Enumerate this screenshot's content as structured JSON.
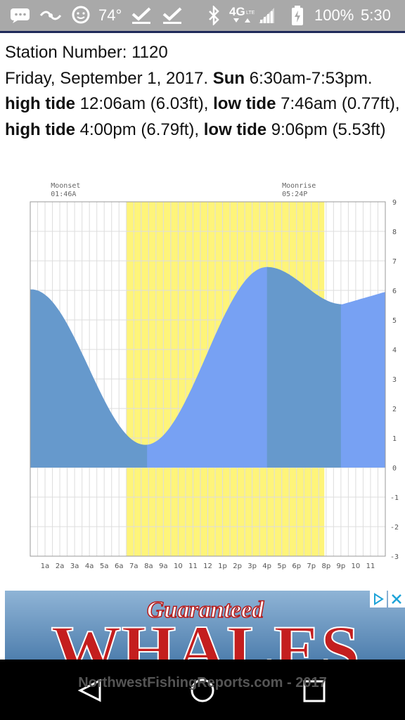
{
  "status_bar": {
    "temperature": "74°",
    "network": "4G LTE",
    "battery": "100%",
    "time": "5:30",
    "icons": [
      "messages-icon",
      "waze-icon",
      "waze-face-icon",
      "check-icon",
      "check-icon",
      "bluetooth-icon",
      "signal-icon",
      "battery-charging-icon"
    ]
  },
  "station": {
    "station_line": "Station Number: 1120",
    "date": "Friday, September 1, 2017.",
    "sun_label": "Sun",
    "sun_times": "6:30am-7:53pm.",
    "tide1_label": "high tide",
    "tide1_value": "12:06am (6.03ft),",
    "tide2_label": "low tide",
    "tide2_value": "7:46am (0.77ft),",
    "tide3_label": "high tide",
    "tide3_value": "4:00pm (6.79ft),",
    "tide4_label": "low tide",
    "tide4_value": "9:06pm (5.53ft)"
  },
  "chart_data": {
    "type": "area",
    "x_tick_labels": [
      "1a",
      "2a",
      "3a",
      "4a",
      "5a",
      "6a",
      "7a",
      "8a",
      "9a",
      "10",
      "11",
      "12",
      "1p",
      "2p",
      "3p",
      "4p",
      "5p",
      "6p",
      "7p",
      "8p",
      "9p",
      "10",
      "11"
    ],
    "y_tick_labels": [
      "9",
      "8",
      "7",
      "6",
      "5",
      "4",
      "3",
      "2",
      "1",
      "0",
      "-1",
      "-2",
      "-3"
    ],
    "ylim": [
      -3,
      9
    ],
    "xlim": [
      0,
      24
    ],
    "grid": true,
    "moonset_label": "Moonset",
    "moonset_time": "01:46A",
    "moonset_hour": 1.77,
    "moonrise_label": "Moonrise",
    "moonrise_time": "05:24P",
    "moonrise_hour": 17.4,
    "daylight_start_hour": 6.5,
    "daylight_end_hour": 19.88,
    "tide_extremes": [
      {
        "hour": 0.1,
        "height": 6.03
      },
      {
        "hour": 7.77,
        "height": 0.77
      },
      {
        "hour": 16.0,
        "height": 6.79
      },
      {
        "hour": 21.1,
        "height": 5.53
      }
    ],
    "end_height": 5.95,
    "dark_bands": [
      [
        0,
        7.9
      ],
      [
        16.0,
        21.0
      ]
    ],
    "colors": {
      "daylight": "#fef47a",
      "tide_dark": "#6699cc",
      "tide_light": "#77a1f3",
      "grid": "#dddddd",
      "border": "#999999"
    }
  },
  "ad": {
    "headline": "Guaranteed",
    "big_word": "WHALES",
    "adchoices_icon": "adchoices-icon",
    "close_icon": "close-icon"
  },
  "footer": {
    "text": "NorthwestFishingReports.com - 2017"
  },
  "nav": {
    "back": "back-icon",
    "home": "home-icon",
    "recents": "recents-icon"
  }
}
